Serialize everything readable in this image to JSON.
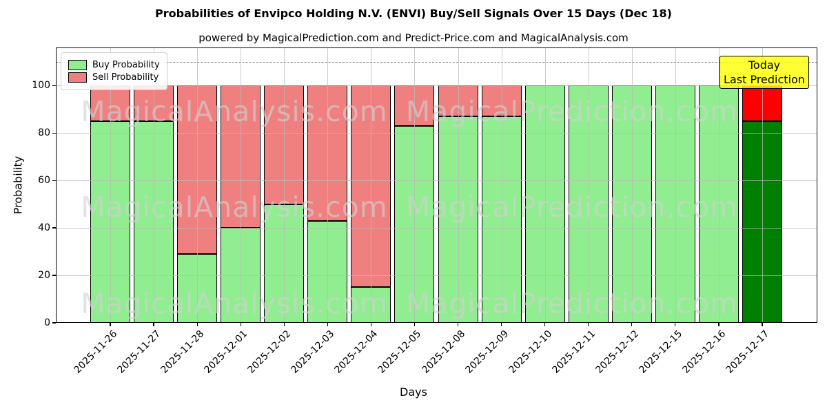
{
  "title": "Probabilities of Envipco Holding N.V. (ENVI) Buy/Sell Signals Over 15 Days (Dec 18)",
  "subtitle": "powered by MagicalPrediction.com and Predict-Price.com and MagicalAnalysis.com",
  "watermarks": {
    "left": "MagicalAnalysis.com",
    "right": "MagicalPrediction.com"
  },
  "legend": {
    "items": [
      {
        "label": "Buy Probability",
        "color": "#90EE90"
      },
      {
        "label": "Sell Probability",
        "color": "#F08080"
      }
    ]
  },
  "annotation": {
    "line1": "Today",
    "line2": "Last Prediction",
    "bg_color": "#FFFF00"
  },
  "chart_data": {
    "type": "bar",
    "stacked": true,
    "title": "Probabilities of Envipco Holding N.V. (ENVI) Buy/Sell Signals Over 15 Days (Dec 18)",
    "xlabel": "Days",
    "ylabel": "Probability",
    "categories": [
      "2025-11-26",
      "2025-11-27",
      "2025-11-28",
      "2025-12-01",
      "2025-12-02",
      "2025-12-03",
      "2025-12-04",
      "2025-12-05",
      "2025-12-08",
      "2025-12-09",
      "2025-12-10",
      "2025-12-11",
      "2025-12-12",
      "2025-12-15",
      "2025-12-16",
      "2025-12-17"
    ],
    "series": [
      {
        "name": "Buy Probability",
        "color": "#90EE90",
        "today_color": "#008000",
        "values": [
          85,
          85,
          29,
          40,
          50,
          43,
          15,
          83,
          87,
          87,
          100,
          100,
          100,
          100,
          100,
          85
        ]
      },
      {
        "name": "Sell Probability",
        "color": "#F08080",
        "today_color": "#FF0000",
        "values": [
          15,
          15,
          71,
          60,
          50,
          57,
          85,
          17,
          13,
          13,
          0,
          0,
          0,
          0,
          0,
          15
        ]
      }
    ],
    "today_index": 15,
    "yticks": [
      0,
      20,
      40,
      60,
      80,
      100
    ],
    "ylim": [
      0,
      116
    ],
    "dashed_line_y": 110,
    "grid": true,
    "legend_position": "upper left"
  }
}
